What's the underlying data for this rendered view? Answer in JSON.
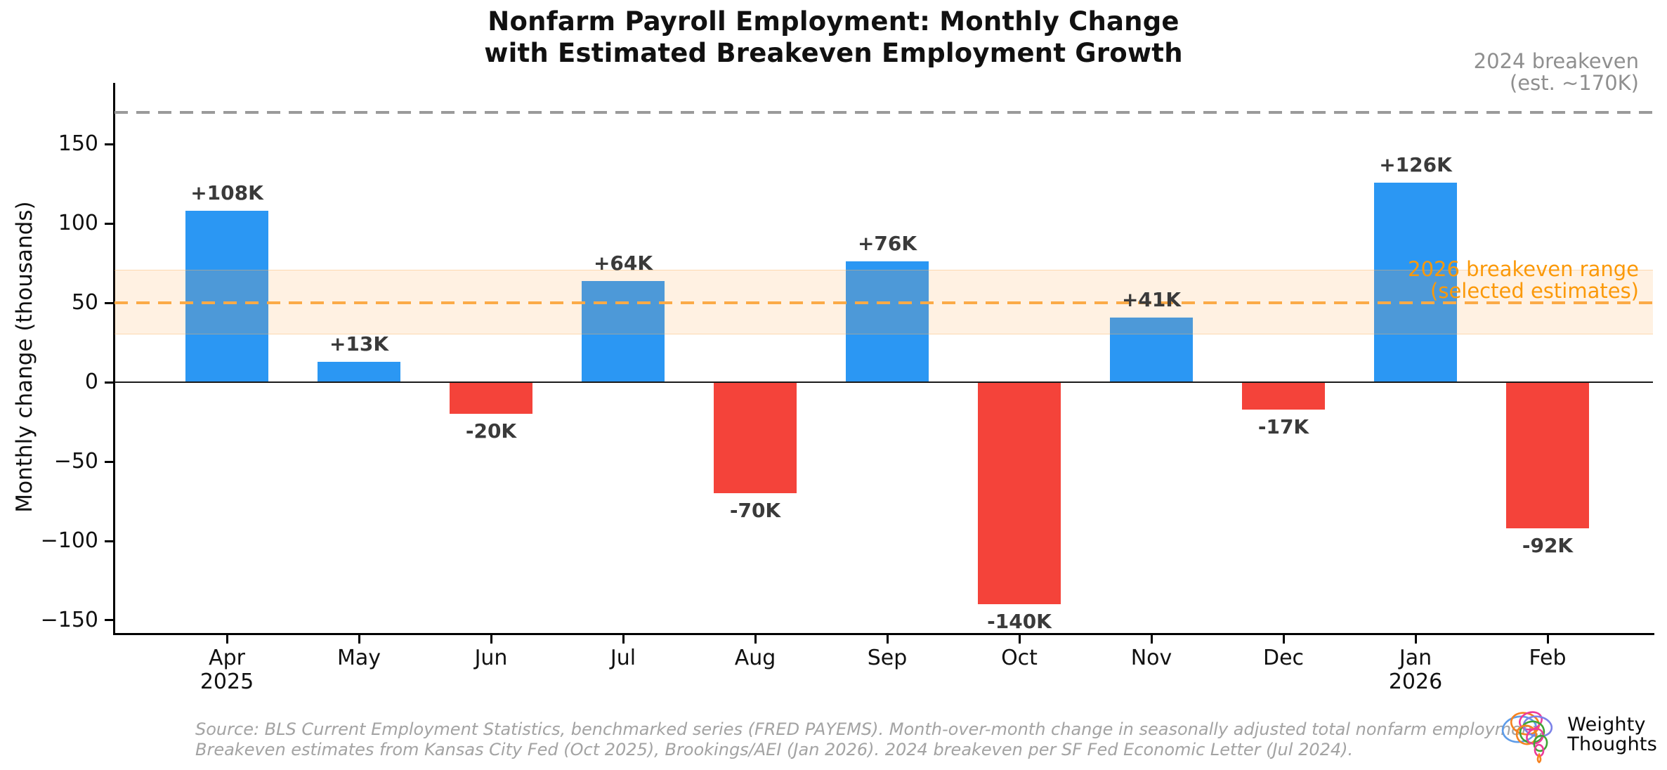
{
  "title": {
    "line1": "Nonfarm Payroll Employment: Monthly Change",
    "line2": "with Estimated Breakeven Employment Growth"
  },
  "chart_data": {
    "type": "bar",
    "ylabel": "Monthly change (thousands)",
    "categories": [
      "Apr",
      "May",
      "Jun",
      "Jul",
      "Aug",
      "Sep",
      "Oct",
      "Nov",
      "Dec",
      "Jan",
      "Feb"
    ],
    "category_sublabels": {
      "Apr": "2025",
      "Jan": "2026"
    },
    "values": [
      108,
      13,
      -20,
      64,
      -70,
      76,
      -140,
      41,
      -17,
      126,
      -92
    ],
    "bar_labels": [
      "+108K",
      "+13K",
      "-20K",
      "+64K",
      "-70K",
      "+76K",
      "-140K",
      "+41K",
      "-17K",
      "+126K",
      "-92K"
    ],
    "ylim": [
      -158,
      190
    ],
    "yticks": [
      150,
      100,
      50,
      0,
      -50,
      -100,
      -150
    ],
    "grid": false,
    "positive_color": "#2B97F3",
    "negative_color": "#F4433A",
    "bar_label_color": "#3A3A3A",
    "zero_line_color": "#1A1A1A",
    "breakeven_2024": {
      "value": 170,
      "line_color": "#9A9A9A",
      "label_line1": "2024 breakeven",
      "label_line2": "(est. ~170K)",
      "label_color": "#8F8F8F"
    },
    "breakeven_2026": {
      "value": 50,
      "band_low": 30,
      "band_high": 71,
      "line_color": "#FBAA47",
      "band_color": "rgba(252, 166, 74, 0.16)",
      "label_line1": "2026 breakeven range",
      "label_line2": "(selected estimates)",
      "label_color": "#FB9909"
    }
  },
  "footer": {
    "line1": "Source: BLS Current Employment Statistics, benchmarked series (FRED PAYEMS). Month-over-month change in seasonally adjusted total nonfarm employment.",
    "line2": "Breakeven estimates from Kansas City Fed (Oct 2025), Brookings/AEI (Jan 2026). 2024 breakeven per SF Fed Economic Letter (Jul 2024)."
  },
  "logo": {
    "line1": "Weighty",
    "line2": "Thoughts"
  }
}
